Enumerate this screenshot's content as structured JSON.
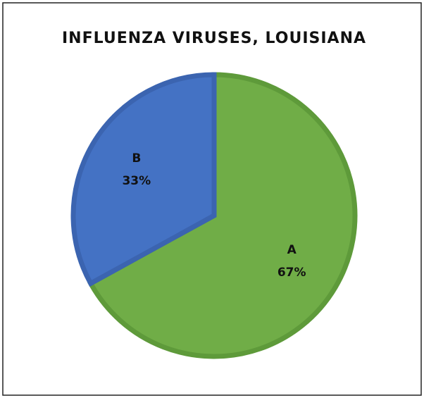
{
  "chart_data": {
    "type": "pie",
    "title": "INFLUENZA VIRUSES, LOUISIANA",
    "categories": [
      "A",
      "B"
    ],
    "values": [
      67,
      33
    ],
    "value_labels": [
      "67%",
      "33%"
    ],
    "colors": [
      "#70ad47",
      "#4472c4"
    ],
    "border_colors": [
      "#5e9a3a",
      "#3b64b0"
    ]
  }
}
